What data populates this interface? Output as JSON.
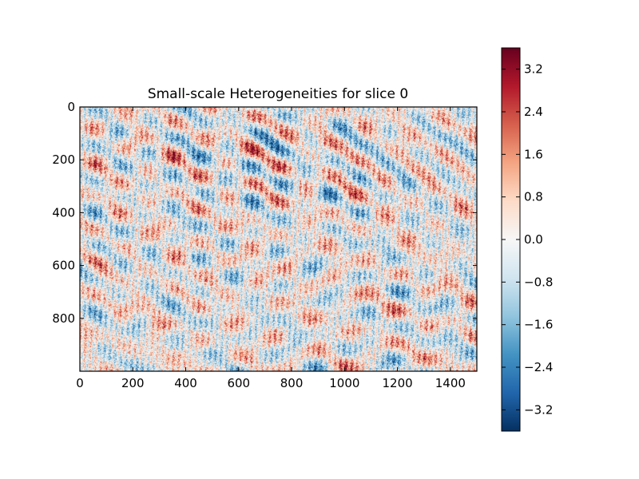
{
  "chart_data": {
    "type": "heatmap",
    "title": "Small-scale Heterogeneities for slice 0",
    "xlabel": "",
    "ylabel": "",
    "xlim": [
      0,
      1500
    ],
    "ylim": [
      1000,
      0
    ],
    "x_ticks": [
      0,
      200,
      400,
      600,
      800,
      1000,
      1200,
      1400
    ],
    "y_ticks": [
      0,
      200,
      400,
      600,
      800
    ],
    "x_tick_labels": [
      "0",
      "200",
      "400",
      "600",
      "800",
      "1000",
      "1200",
      "1400"
    ],
    "y_tick_labels": [
      "0",
      "200",
      "400",
      "600",
      "800"
    ],
    "colormap": "RdBu_r",
    "value_range": [
      -3.6,
      3.6
    ],
    "colorbar": {
      "ticks": [
        3.2,
        2.4,
        1.6,
        0.8,
        0.0,
        -0.8,
        -1.6,
        -2.4,
        -3.2
      ],
      "tick_labels": [
        "3.2",
        "2.4",
        "1.6",
        "0.8",
        "0.0",
        "−0.8",
        "−1.6",
        "−2.4",
        "−3.2"
      ]
    },
    "grid": false,
    "legend": "none"
  }
}
